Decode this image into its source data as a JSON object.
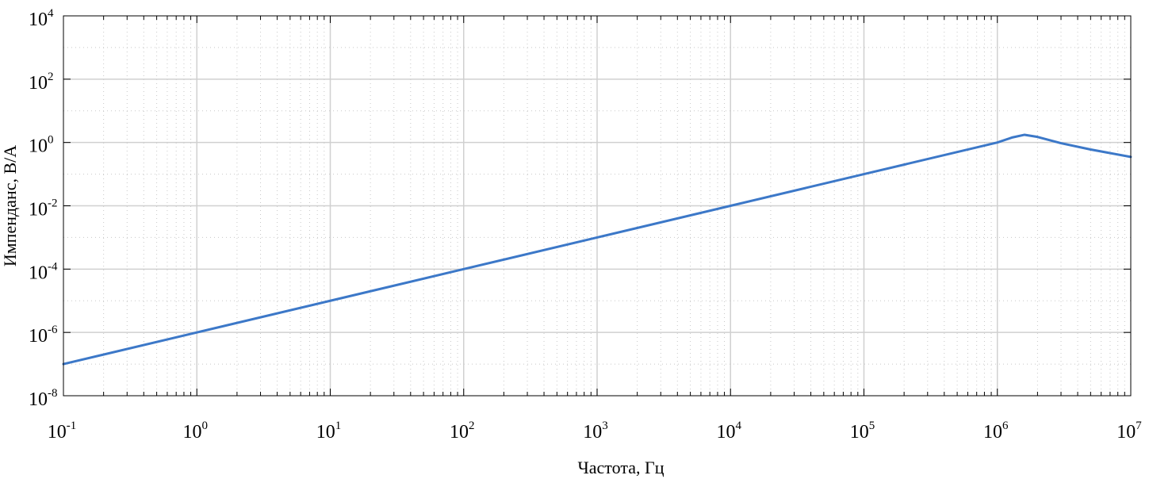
{
  "chart_data": {
    "type": "line",
    "title": "",
    "xlabel": "Частота, Гц",
    "ylabel": "Импенданс, В/А",
    "xscale": "log",
    "yscale": "log",
    "xlim": [
      0.1,
      10000000
    ],
    "ylim": [
      1e-08,
      10000
    ],
    "grid": true,
    "minor_grid": true,
    "x_ticks": [
      {
        "base": "10",
        "exp": "-1"
      },
      {
        "base": "10",
        "exp": "0"
      },
      {
        "base": "10",
        "exp": "1"
      },
      {
        "base": "10",
        "exp": "2"
      },
      {
        "base": "10",
        "exp": "3"
      },
      {
        "base": "10",
        "exp": "4"
      },
      {
        "base": "10",
        "exp": "5"
      },
      {
        "base": "10",
        "exp": "6"
      },
      {
        "base": "10",
        "exp": "7"
      }
    ],
    "y_ticks": [
      {
        "base": "10",
        "exp": "-8"
      },
      {
        "base": "10",
        "exp": "-6"
      },
      {
        "base": "10",
        "exp": "-4"
      },
      {
        "base": "10",
        "exp": "-2"
      },
      {
        "base": "10",
        "exp": "0"
      },
      {
        "base": "10",
        "exp": "2"
      },
      {
        "base": "10",
        "exp": "4"
      }
    ],
    "series": [
      {
        "color": "#3c78c8",
        "x": [
          0.1,
          1,
          10,
          100,
          1000,
          10000,
          100000,
          1000000,
          1300000,
          1600000,
          2000000,
          3000000,
          5000000,
          10000000
        ],
        "y": [
          1e-07,
          1e-06,
          1e-05,
          0.0001,
          0.001,
          0.01,
          0.1,
          1.0,
          1.45,
          1.75,
          1.5,
          0.95,
          0.6,
          0.35
        ]
      }
    ]
  }
}
